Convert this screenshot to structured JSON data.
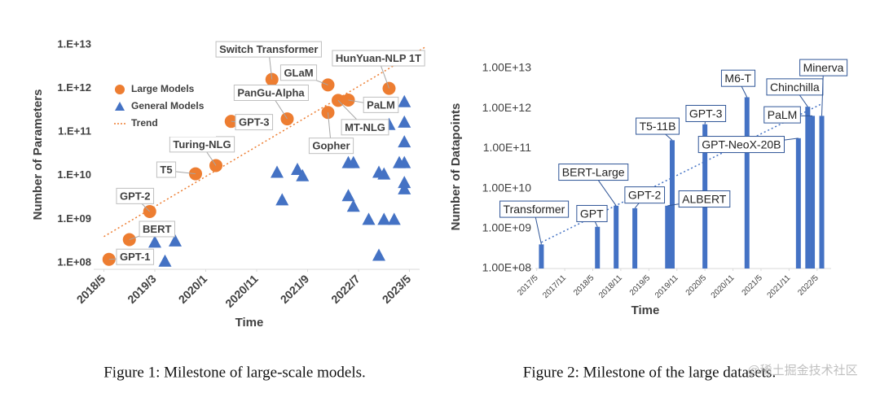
{
  "chart_data": [
    {
      "type": "scatter",
      "y_label": "Number of Parameters",
      "x_label": "Time",
      "log_scale": true,
      "legend": "upper left",
      "xlim": [
        "2018/3",
        "2023/7"
      ],
      "xticks": [
        "2018/5",
        "2019/3",
        "2020/1",
        "2020/11",
        "2021/9",
        "2022/7",
        "2023/5"
      ],
      "ylim": [
        100000000.0,
        10000000000000.0
      ],
      "yticks": [
        {
          "value": 100000000.0,
          "label": "1.E+08"
        },
        {
          "value": 1000000000.0,
          "label": "1.E+09"
        },
        {
          "value": 10000000000.0,
          "label": "1.E+10"
        },
        {
          "value": 100000000000.0,
          "label": "1.E+11"
        },
        {
          "value": 1000000000000.0,
          "label": "1.E+12"
        },
        {
          "value": 10000000000000.0,
          "label": "1.E+13"
        }
      ],
      "series": [
        {
          "name": "Large Models",
          "color": "#ed7d31",
          "marker": "circle",
          "x": [
            "2018/6",
            "2018/10",
            "2019/2",
            "2019/11",
            "2020/3",
            "2020/6",
            "2021/2",
            "2021/5",
            "2022/1",
            "2022/1",
            "2022/3",
            "2022/5",
            "2023/1"
          ],
          "values": [
            120000000.0,
            340000000.0,
            1500000000.0,
            11000000000.0,
            17000000000.0,
            175000000000.0,
            1600000000000.0,
            200000000000.0,
            1200000000000.0,
            280000000000.0,
            530000000000.0,
            540000000000.0,
            1000000000000.0
          ],
          "labels": [
            "GPT-1",
            "BERT",
            "GPT-2",
            "T5",
            "Turing-NLG",
            "GPT-3",
            "Switch Transformer",
            "PanGu-Alpha",
            "GLaM",
            "Gopher",
            "MT-NLG",
            "PaLM",
            "HunYuan-NLP 1T"
          ]
        },
        {
          "name": "General Models",
          "color": "#4472c4",
          "marker": "triangle",
          "x": [
            "2019/3",
            "2019/5",
            "2019/7",
            "2021/3",
            "2021/4",
            "2021/7",
            "2021/8",
            "2022/5",
            "2022/5",
            "2022/6",
            "2022/6",
            "2022/9",
            "2022/11",
            "2022/11",
            "2022/12",
            "2022/12",
            "2023/1",
            "2023/2",
            "2023/3",
            "2023/4",
            "2023/4",
            "2023/4",
            "2023/4",
            "2023/4",
            "2023/4"
          ],
          "values": [
            300000000.0,
            110000000.0,
            320000000.0,
            12000000000.0,
            2800000000.0,
            14000000000.0,
            10000000000.0,
            20000000000.0,
            3500000000.0,
            20000000000.0,
            2000000000.0,
            1000000000.0,
            150000000.0,
            12000000000.0,
            11000000000.0,
            1000000000.0,
            150000000000.0,
            1000000000.0,
            20000000000.0,
            60000000000.0,
            5000000000.0,
            500000000000.0,
            170000000000.0,
            20000000000.0,
            7000000000.0
          ]
        },
        {
          "name": "Trend",
          "color": "#ed7d31",
          "style": "dotted",
          "x": [
            "2018/5",
            "2023/8"
          ],
          "values": [
            400000000.0,
            8700000000000.0
          ]
        }
      ]
    },
    {
      "type": "bar",
      "y_label": "Number of Datapoints",
      "x_label": "Time",
      "log_scale": true,
      "color": "#4472c4",
      "xlim": [
        "2016/12",
        "2022/8"
      ],
      "xticks": [
        "2017/5",
        "2017/11",
        "2018/5",
        "2018/11",
        "2019/5",
        "2019/11",
        "2020/5",
        "2020/11",
        "2021/5",
        "2021/11",
        "2022/5"
      ],
      "ylim": [
        100000000.0,
        10000000000000.0
      ],
      "yticks": [
        {
          "value": 100000000.0,
          "label": "1.00E+08"
        },
        {
          "value": 1000000000.0,
          "label": "1.00E+09"
        },
        {
          "value": 10000000000.0,
          "label": "1.00E+10"
        },
        {
          "value": 100000000000.0,
          "label": "1.00E+11"
        },
        {
          "value": 1000000000000.0,
          "label": "1.00E+12"
        },
        {
          "value": 10000000000000.0,
          "label": "1.00E+13"
        }
      ],
      "x": [
        "2017/6",
        "2018/6",
        "2018/10",
        "2019/2",
        "2019/9",
        "2019/10",
        "2020/5",
        "2021/2",
        "2022/1",
        "2022/3",
        "2022/4",
        "2022/6"
      ],
      "values": [
        400000000.0,
        1100000000.0,
        3700000000.0,
        3200000000.0,
        3700000000.0,
        160000000000.0,
        400000000000.0,
        1900000000000.0,
        180000000000.0,
        1100000000000.0,
        650000000000.0,
        650000000000.0
      ],
      "labels": [
        "Transformer",
        "GPT",
        "BERT-Large",
        "GPT-2",
        "ALBERT",
        "T5-11B",
        "GPT-3",
        "M6-T",
        "GPT-NeoX-20B",
        "Chinchilla",
        "PaLM",
        "Minerva"
      ],
      "trend": {
        "color": "#4472c4",
        "style": "dotted",
        "x": [
          "2017/6",
          "2022/6"
        ],
        "values": [
          450000000.0,
          1300000000000.0
        ]
      }
    }
  ],
  "captions": [
    "Figure 1: Milestone of large-scale models.",
    "Figure 2: Milestone of the large datasets."
  ],
  "watermark": "@稀土掘金技术社区"
}
